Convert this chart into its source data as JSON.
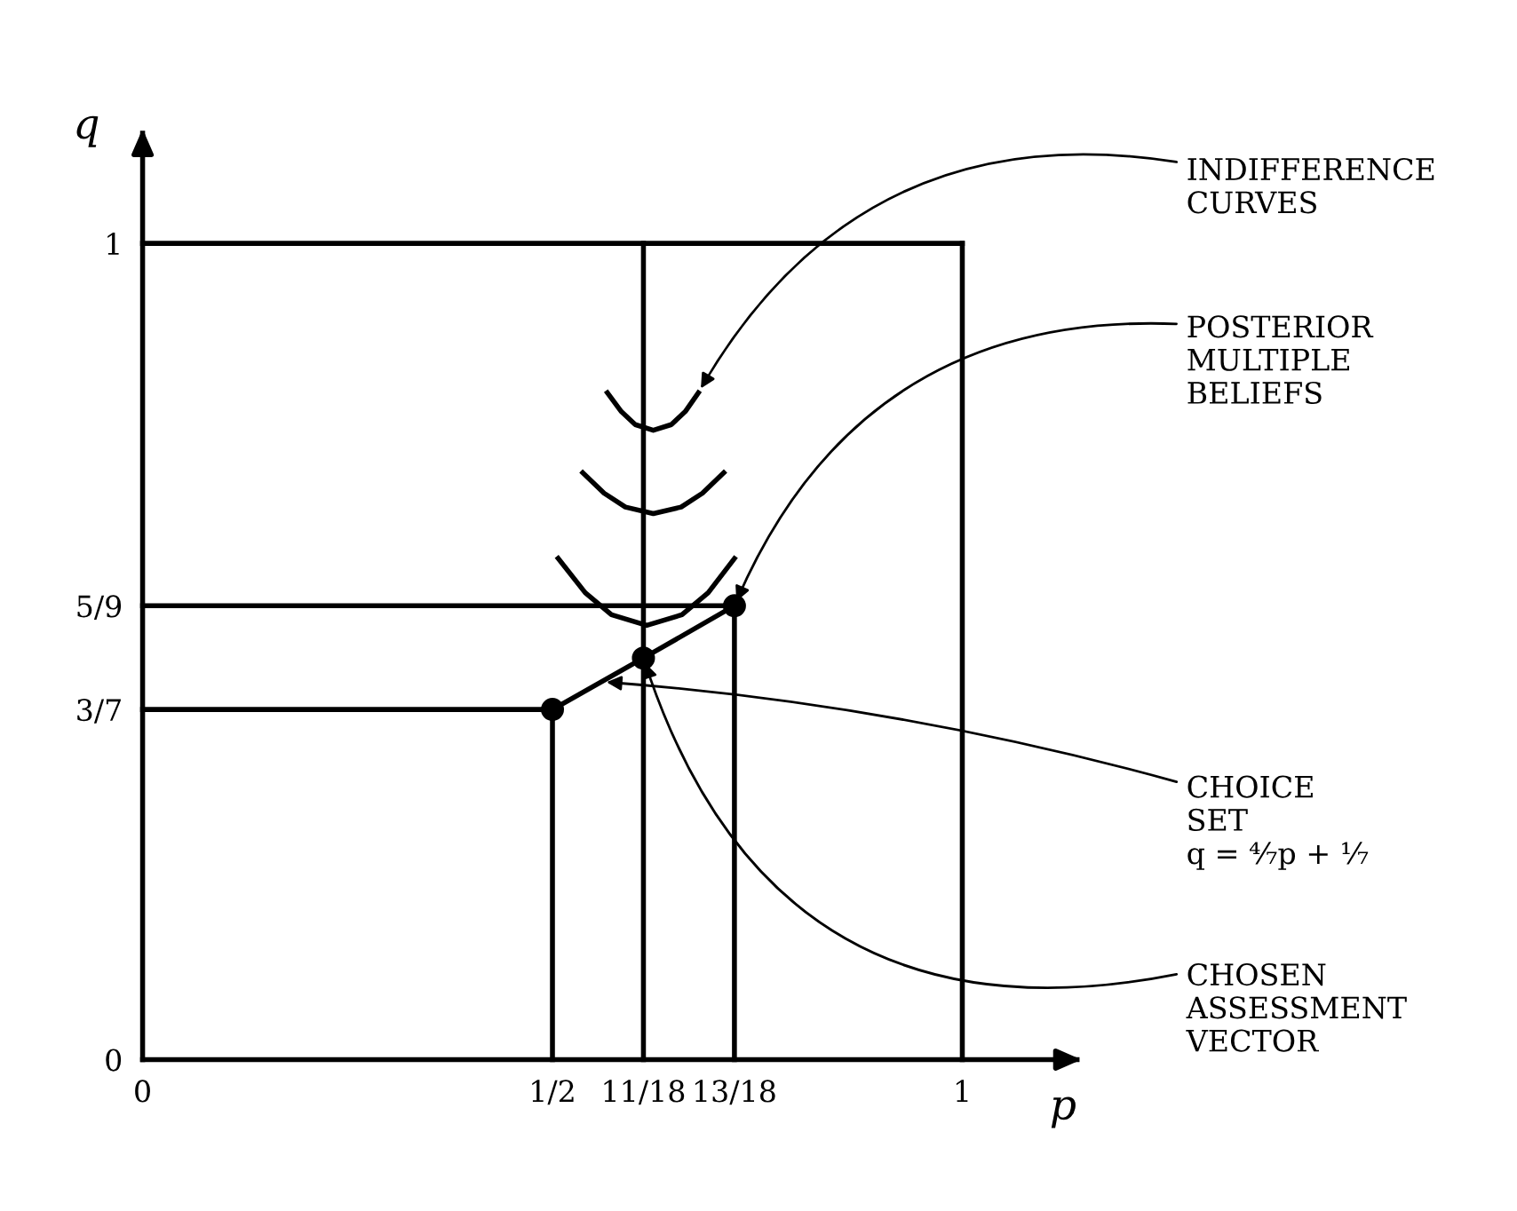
{
  "chart_data": {
    "type": "line",
    "xlabel": "p",
    "ylabel": "q",
    "xlim": [
      0,
      1.14
    ],
    "ylim": [
      0,
      1.135
    ],
    "xticks": [
      0,
      {
        "value": 0.5,
        "label": "1/2"
      },
      {
        "value": 0.611,
        "label": "11/18"
      },
      {
        "value": 0.722,
        "label": "13/18"
      },
      1
    ],
    "yticks": [
      0,
      {
        "value": 0.429,
        "label": "3/7"
      },
      {
        "value": 0.556,
        "label": "5/9"
      },
      1
    ],
    "grid": false,
    "series": [
      {
        "color": "#000000",
        "x": [
          0,
          1
        ],
        "values": [
          1,
          1
        ]
      },
      {
        "color": "#000000",
        "x": [
          1,
          1
        ],
        "values": [
          0,
          1
        ]
      },
      {
        "color": "#000000",
        "x": [
          0.611,
          0.611
        ],
        "values": [
          0,
          1
        ]
      },
      {
        "color": "#000000",
        "x": [
          0,
          0.722
        ],
        "values": [
          0.556,
          0.556
        ]
      },
      {
        "color": "#000000",
        "x": [
          0.722,
          0.722
        ],
        "values": [
          0,
          0.556
        ]
      },
      {
        "color": "#000000",
        "x": [
          0,
          0.5
        ],
        "values": [
          0.429,
          0.429
        ]
      },
      {
        "color": "#000000",
        "x": [
          0.5,
          0.5
        ],
        "values": [
          0,
          0.429
        ]
      },
      {
        "color": "#000000",
        "x": [
          0.567,
          0.584,
          0.601,
          0.623,
          0.645,
          0.662,
          0.678
        ],
        "values": [
          0.817,
          0.794,
          0.778,
          0.771,
          0.778,
          0.794,
          0.817
        ]
      },
      {
        "color": "#000000",
        "x": [
          0.537,
          0.563,
          0.589,
          0.623,
          0.657,
          0.683,
          0.709
        ],
        "values": [
          0.719,
          0.694,
          0.677,
          0.669,
          0.677,
          0.694,
          0.719
        ]
      },
      {
        "color": "#000000",
        "x": [
          0.507,
          0.54,
          0.572,
          0.615,
          0.658,
          0.69,
          0.722
        ],
        "values": [
          0.614,
          0.572,
          0.545,
          0.532,
          0.545,
          0.572,
          0.614
        ]
      },
      {
        "color": "#000000",
        "x": [
          0.5,
          0.611,
          0.722
        ],
        "values": [
          0.429,
          0.492,
          0.556
        ]
      },
      {
        "type": "scatter",
        "color": "#000000",
        "x": [
          0.5,
          0.611,
          0.722
        ],
        "values": [
          0.429,
          0.492,
          0.556
        ],
        "marker": "circle"
      }
    ],
    "annotations": [
      {
        "text": "INDIFFERENCE\nCURVES",
        "x": 0.678,
        "y": 0.817
      },
      {
        "text": "POSTERIOR\nMULTIPLE\nBELIEFS",
        "x": 0.722,
        "y": 0.556
      },
      {
        "text": "CHOICE\nSET\nq = ⁴⁄₇p + ¹⁄₇",
        "x": 0.56,
        "y": 0.463
      },
      {
        "text": "CHOSEN\nASSESSMENT\nVECTOR",
        "x": 0.611,
        "y": 0.492
      }
    ]
  }
}
